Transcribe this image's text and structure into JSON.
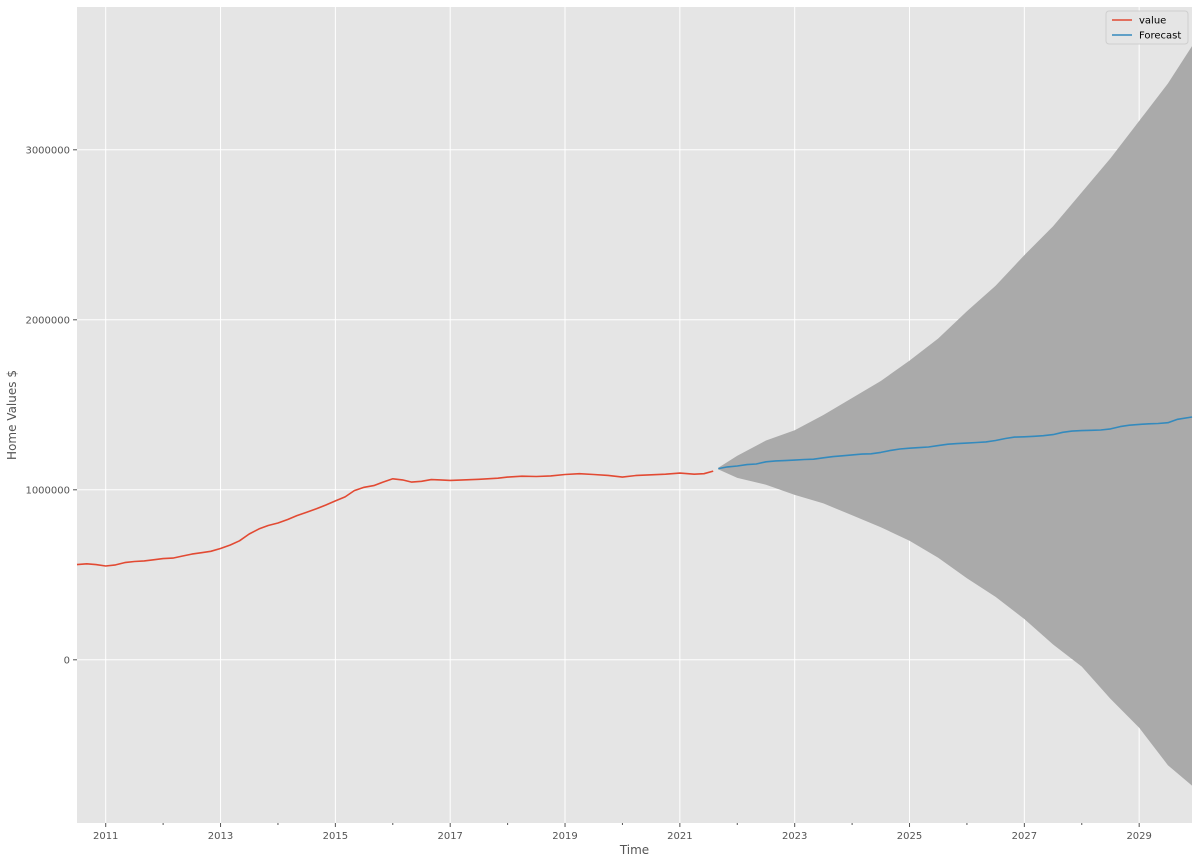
{
  "chart_data": {
    "type": "line",
    "title": "",
    "xlabel": "Time",
    "ylabel": "Home Values $",
    "xlim": [
      2010.5,
      2029.92
    ],
    "ylim": [
      -960000,
      3840000
    ],
    "x_ticks": [
      2011,
      2013,
      2015,
      2017,
      2019,
      2021,
      2023,
      2025,
      2027,
      2029
    ],
    "x_tick_labels": [
      "2011",
      "2013",
      "2015",
      "2017",
      "2019",
      "2021",
      "2023",
      "2025",
      "2027",
      "2029"
    ],
    "y_ticks": [
      0,
      1000000,
      2000000,
      3000000
    ],
    "y_tick_labels": [
      "0",
      "1000000",
      "2000000",
      "3000000"
    ],
    "grid": true,
    "legend": "top-right",
    "colors": {
      "value": "#E24A33",
      "forecast": "#348ABD",
      "interval": "#AAAAAA",
      "background": "#E5E5E5",
      "grid": "#FFFFFF"
    },
    "series": [
      {
        "name": "value",
        "points": [
          [
            2010.5,
            560000
          ],
          [
            2010.67,
            565000
          ],
          [
            2010.83,
            560000
          ],
          [
            2011.0,
            552000
          ],
          [
            2011.17,
            558000
          ],
          [
            2011.33,
            572000
          ],
          [
            2011.5,
            578000
          ],
          [
            2011.67,
            582000
          ],
          [
            2011.83,
            588000
          ],
          [
            2012.0,
            595000
          ],
          [
            2012.17,
            598000
          ],
          [
            2012.33,
            610000
          ],
          [
            2012.5,
            622000
          ],
          [
            2012.67,
            630000
          ],
          [
            2012.83,
            638000
          ],
          [
            2013.0,
            655000
          ],
          [
            2013.17,
            675000
          ],
          [
            2013.33,
            700000
          ],
          [
            2013.5,
            740000
          ],
          [
            2013.67,
            770000
          ],
          [
            2013.83,
            790000
          ],
          [
            2014.0,
            805000
          ],
          [
            2014.17,
            825000
          ],
          [
            2014.33,
            848000
          ],
          [
            2014.5,
            868000
          ],
          [
            2014.67,
            888000
          ],
          [
            2014.83,
            910000
          ],
          [
            2015.0,
            935000
          ],
          [
            2015.17,
            958000
          ],
          [
            2015.33,
            995000
          ],
          [
            2015.5,
            1015000
          ],
          [
            2015.67,
            1025000
          ],
          [
            2015.83,
            1045000
          ],
          [
            2016.0,
            1065000
          ],
          [
            2016.17,
            1058000
          ],
          [
            2016.33,
            1045000
          ],
          [
            2016.5,
            1050000
          ],
          [
            2016.67,
            1060000
          ],
          [
            2016.83,
            1058000
          ],
          [
            2017.0,
            1055000
          ],
          [
            2017.17,
            1057000
          ],
          [
            2017.5,
            1062000
          ],
          [
            2017.83,
            1068000
          ],
          [
            2018.0,
            1075000
          ],
          [
            2018.25,
            1080000
          ],
          [
            2018.5,
            1078000
          ],
          [
            2018.75,
            1082000
          ],
          [
            2019.0,
            1090000
          ],
          [
            2019.25,
            1095000
          ],
          [
            2019.5,
            1090000
          ],
          [
            2019.75,
            1085000
          ],
          [
            2020.0,
            1075000
          ],
          [
            2020.25,
            1085000
          ],
          [
            2020.5,
            1088000
          ],
          [
            2020.75,
            1092000
          ],
          [
            2021.0,
            1098000
          ],
          [
            2021.25,
            1092000
          ],
          [
            2021.42,
            1095000
          ],
          [
            2021.58,
            1110000
          ]
        ]
      },
      {
        "name": "Forecast",
        "points": [
          [
            2021.67,
            1125000
          ],
          [
            2021.83,
            1135000
          ],
          [
            2022.0,
            1140000
          ],
          [
            2022.17,
            1148000
          ],
          [
            2022.33,
            1152000
          ],
          [
            2022.5,
            1165000
          ],
          [
            2022.67,
            1170000
          ],
          [
            2022.83,
            1172000
          ],
          [
            2023.0,
            1175000
          ],
          [
            2023.17,
            1178000
          ],
          [
            2023.33,
            1180000
          ],
          [
            2023.5,
            1188000
          ],
          [
            2023.67,
            1195000
          ],
          [
            2023.83,
            1200000
          ],
          [
            2024.0,
            1205000
          ],
          [
            2024.17,
            1210000
          ],
          [
            2024.33,
            1212000
          ],
          [
            2024.5,
            1220000
          ],
          [
            2024.67,
            1232000
          ],
          [
            2024.83,
            1240000
          ],
          [
            2025.0,
            1245000
          ],
          [
            2025.17,
            1248000
          ],
          [
            2025.33,
            1252000
          ],
          [
            2025.5,
            1260000
          ],
          [
            2025.67,
            1268000
          ],
          [
            2025.83,
            1272000
          ],
          [
            2026.0,
            1275000
          ],
          [
            2026.17,
            1278000
          ],
          [
            2026.33,
            1282000
          ],
          [
            2026.5,
            1290000
          ],
          [
            2026.67,
            1302000
          ],
          [
            2026.83,
            1310000
          ],
          [
            2027.0,
            1312000
          ],
          [
            2027.17,
            1315000
          ],
          [
            2027.33,
            1318000
          ],
          [
            2027.5,
            1325000
          ],
          [
            2027.67,
            1338000
          ],
          [
            2027.83,
            1345000
          ],
          [
            2028.0,
            1348000
          ],
          [
            2028.17,
            1350000
          ],
          [
            2028.33,
            1352000
          ],
          [
            2028.5,
            1358000
          ],
          [
            2028.67,
            1372000
          ],
          [
            2028.83,
            1380000
          ],
          [
            2029.0,
            1385000
          ],
          [
            2029.17,
            1388000
          ],
          [
            2029.33,
            1390000
          ],
          [
            2029.5,
            1395000
          ],
          [
            2029.67,
            1415000
          ],
          [
            2029.92,
            1428000
          ]
        ]
      }
    ],
    "confidence_interval": {
      "x": [
        2021.67,
        2022.0,
        2022.5,
        2023.0,
        2023.5,
        2024.0,
        2024.5,
        2025.0,
        2025.5,
        2026.0,
        2026.5,
        2027.0,
        2027.5,
        2028.0,
        2028.5,
        2029.0,
        2029.5,
        2029.92
      ],
      "upper": [
        1130000,
        1200000,
        1290000,
        1350000,
        1440000,
        1540000,
        1640000,
        1760000,
        1890000,
        2050000,
        2200000,
        2380000,
        2550000,
        2750000,
        2950000,
        3170000,
        3390000,
        3610000
      ],
      "lower": [
        1120000,
        1070000,
        1030000,
        970000,
        920000,
        850000,
        780000,
        700000,
        600000,
        480000,
        370000,
        240000,
        90000,
        -40000,
        -230000,
        -400000,
        -620000,
        -740000
      ]
    }
  }
}
